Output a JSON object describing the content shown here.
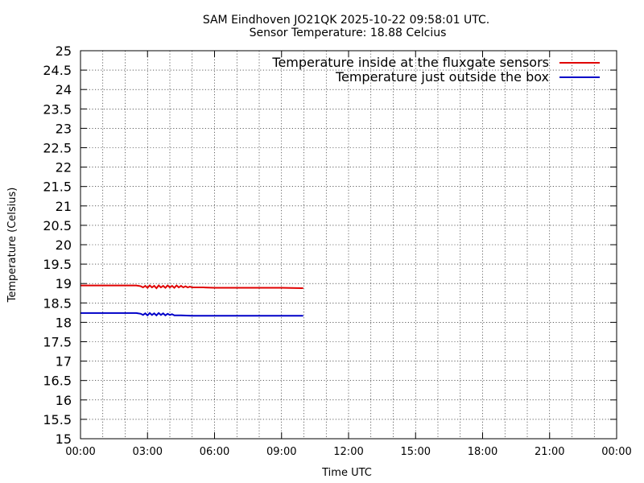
{
  "chart_data": {
    "type": "line",
    "title": "SAM Eindhoven JO21QK 2025-10-22 09:58:01 UTC.",
    "subtitle": "Sensor Temperature: 18.88 Celcius",
    "xlabel": "Time UTC",
    "ylabel": "Temperature (Celsius)",
    "xlim": [
      0,
      24
    ],
    "ylim": [
      15,
      25
    ],
    "grid": true,
    "legend_position": "top-right",
    "x_ticks": [
      {
        "value": 0,
        "label": "00:00"
      },
      {
        "value": 3,
        "label": "03:00"
      },
      {
        "value": 6,
        "label": "06:00"
      },
      {
        "value": 9,
        "label": "09:00"
      },
      {
        "value": 12,
        "label": "12:00"
      },
      {
        "value": 15,
        "label": "15:00"
      },
      {
        "value": 18,
        "label": "18:00"
      },
      {
        "value": 21,
        "label": "21:00"
      },
      {
        "value": 24,
        "label": "00:00"
      }
    ],
    "y_ticks": [
      {
        "value": 15,
        "label": "15"
      },
      {
        "value": 15.5,
        "label": "15.5"
      },
      {
        "value": 16,
        "label": "16"
      },
      {
        "value": 16.5,
        "label": "16.5"
      },
      {
        "value": 17,
        "label": "17"
      },
      {
        "value": 17.5,
        "label": "17.5"
      },
      {
        "value": 18,
        "label": "18"
      },
      {
        "value": 18.5,
        "label": "18.5"
      },
      {
        "value": 19,
        "label": "19"
      },
      {
        "value": 19.5,
        "label": "19.5"
      },
      {
        "value": 20,
        "label": "20"
      },
      {
        "value": 20.5,
        "label": "20.5"
      },
      {
        "value": 21,
        "label": "21"
      },
      {
        "value": 21.5,
        "label": "21.5"
      },
      {
        "value": 22,
        "label": "22"
      },
      {
        "value": 22.5,
        "label": "22.5"
      },
      {
        "value": 23,
        "label": "23"
      },
      {
        "value": 23.5,
        "label": "23.5"
      },
      {
        "value": 24,
        "label": "24"
      },
      {
        "value": 24.5,
        "label": "24.5"
      },
      {
        "value": 25,
        "label": "25"
      }
    ],
    "series": [
      {
        "name": "Temperature inside at the fluxgate sensors",
        "color": "#e00000",
        "x": [
          0,
          0.5,
          1,
          1.5,
          2,
          2.5,
          2.7,
          2.8,
          2.9,
          3.0,
          3.1,
          3.2,
          3.3,
          3.4,
          3.5,
          3.6,
          3.7,
          3.8,
          3.9,
          4.0,
          4.1,
          4.2,
          4.3,
          4.4,
          4.5,
          4.6,
          4.7,
          4.8,
          4.9,
          5.0,
          5.5,
          6,
          7,
          8,
          9,
          9.97
        ],
        "y": [
          18.95,
          18.95,
          18.95,
          18.95,
          18.95,
          18.95,
          18.93,
          18.9,
          18.94,
          18.89,
          18.95,
          18.9,
          18.94,
          18.88,
          18.95,
          18.9,
          18.94,
          18.89,
          18.95,
          18.9,
          18.94,
          18.89,
          18.95,
          18.9,
          18.94,
          18.9,
          18.93,
          18.9,
          18.92,
          18.9,
          18.9,
          18.89,
          18.89,
          18.89,
          18.89,
          18.88
        ]
      },
      {
        "name": "Temperature just outside the box",
        "color": "#0000c8",
        "x": [
          0,
          0.5,
          1,
          1.5,
          2,
          2.5,
          2.7,
          2.8,
          2.9,
          3.0,
          3.1,
          3.2,
          3.3,
          3.4,
          3.5,
          3.6,
          3.7,
          3.8,
          3.9,
          4.0,
          4.1,
          4.2,
          4.5,
          5,
          6,
          7,
          8,
          9,
          9.97
        ],
        "y": [
          18.24,
          18.24,
          18.24,
          18.24,
          18.24,
          18.24,
          18.22,
          18.19,
          18.23,
          18.18,
          18.24,
          18.19,
          18.23,
          18.18,
          18.24,
          18.19,
          18.23,
          18.18,
          18.22,
          18.19,
          18.21,
          18.18,
          18.18,
          18.17,
          18.17,
          18.17,
          18.17,
          18.17,
          18.17
        ]
      }
    ]
  }
}
